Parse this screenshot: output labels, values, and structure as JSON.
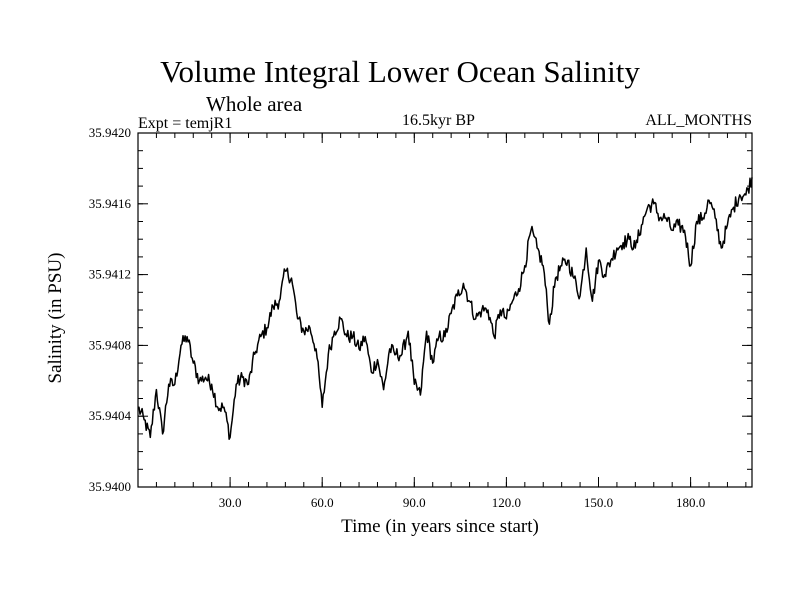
{
  "chart_data": {
    "type": "line",
    "title": "Volume Integral Lower Ocean Salinity",
    "subtitle": "Whole area",
    "expt_label": "Expt = temjR1",
    "period_label": "16.5kyr BP",
    "months_label": "ALL_MONTHS",
    "xlabel": "Time (in years since start)",
    "ylabel": "Salinity (in PSU)",
    "xlim": [
      0,
      200
    ],
    "ylim": [
      35.94,
      35.942
    ],
    "xticks": [
      30,
      60,
      90,
      120,
      150,
      180
    ],
    "xtick_labels": [
      "30.0",
      "60.0",
      "90.0",
      "120.0",
      "150.0",
      "180.0"
    ],
    "yticks": [
      35.94,
      35.9404,
      35.9408,
      35.9412,
      35.9416,
      35.942
    ],
    "ytick_labels": [
      "35.9400",
      "35.9404",
      "35.9408",
      "35.9412",
      "35.9416",
      "35.9420"
    ],
    "grid": false,
    "series": [
      {
        "name": "salinity",
        "x": [
          0,
          2,
          4,
          6,
          8,
          10,
          12,
          14,
          16,
          18,
          20,
          22,
          24,
          26,
          28,
          30,
          32,
          34,
          36,
          38,
          40,
          42,
          44,
          46,
          48,
          50,
          52,
          54,
          56,
          58,
          60,
          62,
          64,
          66,
          68,
          70,
          72,
          74,
          76,
          78,
          80,
          82,
          84,
          86,
          88,
          90,
          92,
          94,
          96,
          98,
          100,
          102,
          104,
          106,
          108,
          110,
          112,
          114,
          116,
          118,
          120,
          122,
          124,
          126,
          128,
          130,
          132,
          134,
          136,
          138,
          140,
          142,
          144,
          146,
          148,
          150,
          152,
          154,
          156,
          158,
          160,
          162,
          164,
          166,
          168,
          170,
          172,
          174,
          176,
          178,
          180,
          182,
          184,
          186,
          188,
          190,
          192,
          194,
          196,
          198,
          200
        ],
        "values": [
          35.94045,
          35.94038,
          35.94028,
          35.94055,
          35.9403,
          35.94058,
          35.94058,
          35.9408,
          35.94085,
          35.9407,
          35.9406,
          35.94062,
          35.94058,
          35.94045,
          35.94045,
          35.94028,
          35.94058,
          35.94062,
          35.94058,
          35.94075,
          35.94085,
          35.9409,
          35.94102,
          35.94105,
          35.94122,
          35.94118,
          35.94095,
          35.94088,
          35.9409,
          35.94078,
          35.94045,
          35.94075,
          35.94088,
          35.94095,
          35.94085,
          35.94085,
          35.94078,
          35.94085,
          35.94065,
          35.94072,
          35.94055,
          35.94078,
          35.94075,
          35.94075,
          35.94088,
          35.94058,
          35.94052,
          35.94088,
          35.9407,
          35.94085,
          35.94085,
          35.94098,
          35.94108,
          35.94115,
          35.94105,
          35.94095,
          35.941,
          35.941,
          35.94085,
          35.941,
          35.94095,
          35.94105,
          35.94112,
          35.94125,
          35.94145,
          35.94135,
          35.94125,
          35.94092,
          35.94118,
          35.94125,
          35.94128,
          35.94118,
          35.94108,
          35.94135,
          35.94105,
          35.94128,
          35.9412,
          35.94128,
          35.94135,
          35.94138,
          35.9414,
          35.94135,
          35.94148,
          35.94158,
          35.9416,
          35.94152,
          35.94152,
          35.94145,
          35.94148,
          35.94145,
          35.94125,
          35.9415,
          35.94152,
          35.94162,
          35.94152,
          35.94135,
          35.94148,
          35.94158,
          35.94165,
          35.94165,
          35.94175
        ]
      }
    ]
  }
}
